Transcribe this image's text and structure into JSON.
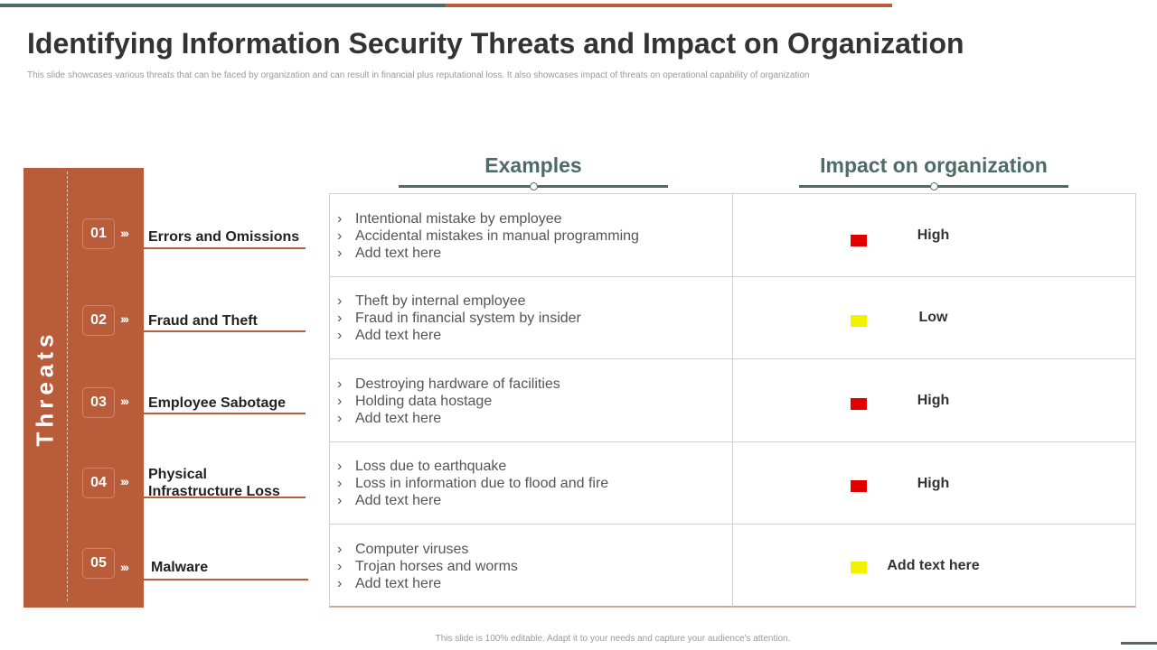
{
  "slide": {
    "title": "Identifying Information Security Threats and Impact on Organization",
    "subtitle": "This slide showcases various threats that can be faced by organization and can result in  financial plus reputational loss. It also showcases impact of threats on operational capability of organization",
    "footer": "This slide is 100% editable.  Adapt it to your needs and capture your audience's attention."
  },
  "threats": {
    "label": "Threats",
    "items": [
      {
        "num": "01",
        "name": "Errors and Omissions",
        "arrow": "›››"
      },
      {
        "num": "02",
        "name": "Fraud and Theft",
        "arrow": "›››"
      },
      {
        "num": "03",
        "name": "Employee Sabotage",
        "arrow": "›››"
      },
      {
        "num": "04",
        "name": "Physical Infrastructure  Loss",
        "arrow": "›››"
      },
      {
        "num": "05",
        "name": "Malware",
        "arrow": "›››"
      }
    ]
  },
  "columns": {
    "examples": "Examples",
    "impact": "Impact on organization"
  },
  "rows": [
    {
      "examples": [
        "Intentional  mistake by employee",
        "Accidental mistakes in manual programming",
        "Add text here"
      ],
      "impact": "High",
      "color": "#e00000"
    },
    {
      "examples": [
        "Theft  by internal employee",
        "Fraud in financial system by insider",
        "Add text here"
      ],
      "impact": "Low",
      "color": "#f2f200"
    },
    {
      "examples": [
        "Destroying hardware of facilities",
        "Holding data hostage",
        "Add text here"
      ],
      "impact": "High",
      "color": "#e00000"
    },
    {
      "examples": [
        "Loss due to earthquake",
        "Loss in information due to flood and fire",
        "Add text here"
      ],
      "impact": "High",
      "color": "#e00000"
    },
    {
      "examples": [
        "Computer viruses",
        "Trojan horses and worms",
        "Add text here"
      ],
      "impact": "Add text here",
      "color": "#f2f200"
    }
  ],
  "colors": {
    "accent": "#b85c3a",
    "teal": "#4e6b66"
  }
}
